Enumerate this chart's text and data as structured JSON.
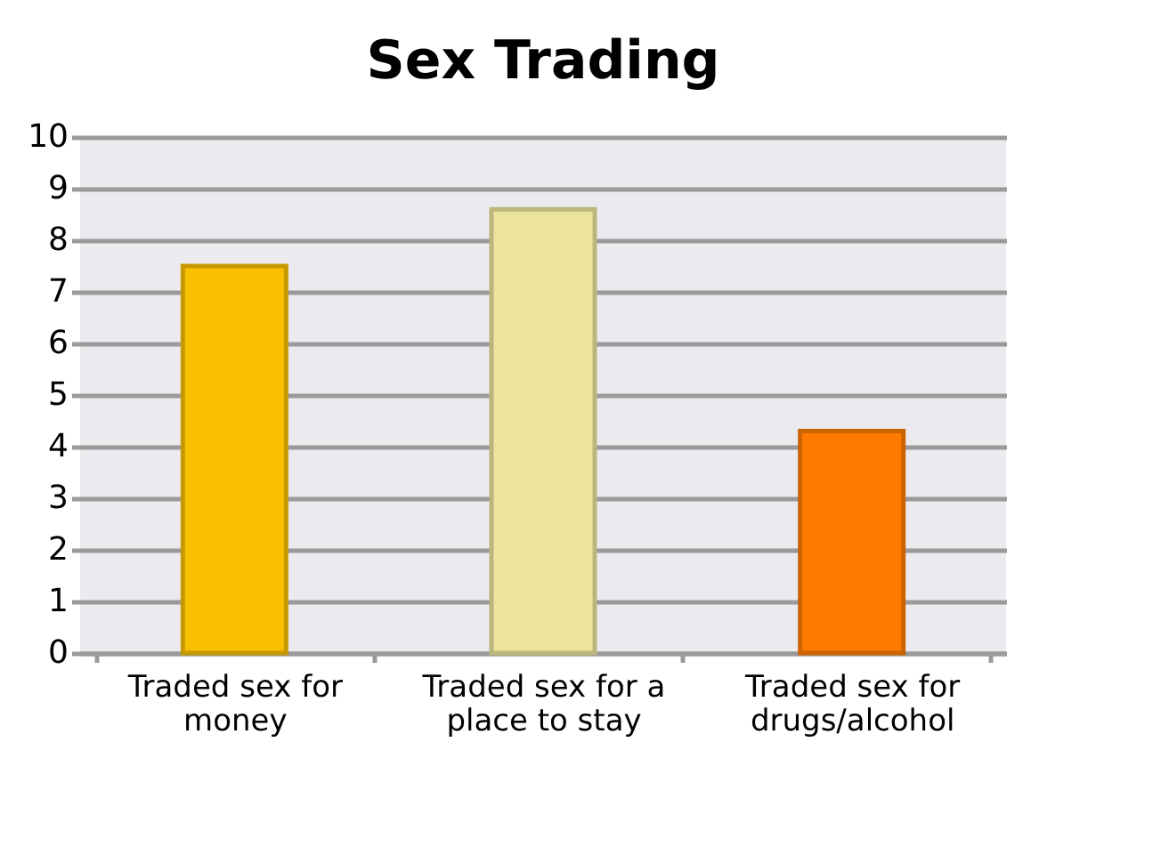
{
  "chart_data": {
    "type": "bar",
    "title": "Sex Trading",
    "categories": [
      "Traded sex for money",
      "Traded sex for a place to stay",
      "Traded sex for drugs/alcohol"
    ],
    "values": [
      7.5,
      8.6,
      4.3
    ],
    "colors": [
      "#f9c000",
      "#ede49c",
      "#ff7b00"
    ],
    "ylim": [
      0,
      10
    ],
    "yticks": [
      0,
      1,
      2,
      3,
      4,
      5,
      6,
      7,
      8,
      9,
      10
    ],
    "grid": "y"
  }
}
